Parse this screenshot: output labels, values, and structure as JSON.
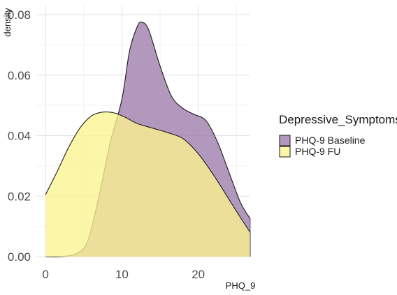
{
  "chart_data": {
    "type": "area",
    "title": "",
    "xlabel": "PHQ_9",
    "ylabel": "density",
    "xlim": [
      -1.2,
      26.8
    ],
    "ylim": [
      0,
      0.083
    ],
    "x_ticks": [
      "0",
      "10",
      "20"
    ],
    "y_ticks": [
      "0.00",
      "0.02",
      "0.04",
      "0.06",
      "0.08"
    ],
    "grid": true,
    "legend_position": "right",
    "legend": {
      "title": "Depressive_Symptoms",
      "entries": [
        "PHQ-9 Baseline",
        "PHQ-9 FU"
      ]
    },
    "series": [
      {
        "name": "PHQ-9 Baseline",
        "color": "#9e7bac",
        "points": [
          [
            0,
            0.0
          ],
          [
            2,
            0.0
          ],
          [
            4,
            0.001
          ],
          [
            5.5,
            0.005
          ],
          [
            7,
            0.02
          ],
          [
            8.5,
            0.038
          ],
          [
            10,
            0.052
          ],
          [
            11,
            0.068
          ],
          [
            12,
            0.076
          ],
          [
            12.6,
            0.0775
          ],
          [
            13.5,
            0.075
          ],
          [
            15,
            0.063
          ],
          [
            16.5,
            0.053
          ],
          [
            18,
            0.049
          ],
          [
            19.5,
            0.047
          ],
          [
            21,
            0.045
          ],
          [
            22.5,
            0.038
          ],
          [
            24,
            0.028
          ],
          [
            25.5,
            0.018
          ],
          [
            26.8,
            0.0125
          ]
        ]
      },
      {
        "name": "PHQ-9 FU",
        "color": "#fbf38f",
        "points": [
          [
            0,
            0.0205
          ],
          [
            1.5,
            0.028
          ],
          [
            3,
            0.036
          ],
          [
            4.5,
            0.0425
          ],
          [
            6,
            0.0465
          ],
          [
            7.5,
            0.0478
          ],
          [
            9,
            0.0475
          ],
          [
            10.5,
            0.046
          ],
          [
            12,
            0.044
          ],
          [
            14,
            0.0425
          ],
          [
            16,
            0.041
          ],
          [
            18,
            0.039
          ],
          [
            20,
            0.034
          ],
          [
            22,
            0.027
          ],
          [
            24,
            0.019
          ],
          [
            25.5,
            0.013
          ],
          [
            26.8,
            0.008
          ]
        ]
      }
    ]
  }
}
